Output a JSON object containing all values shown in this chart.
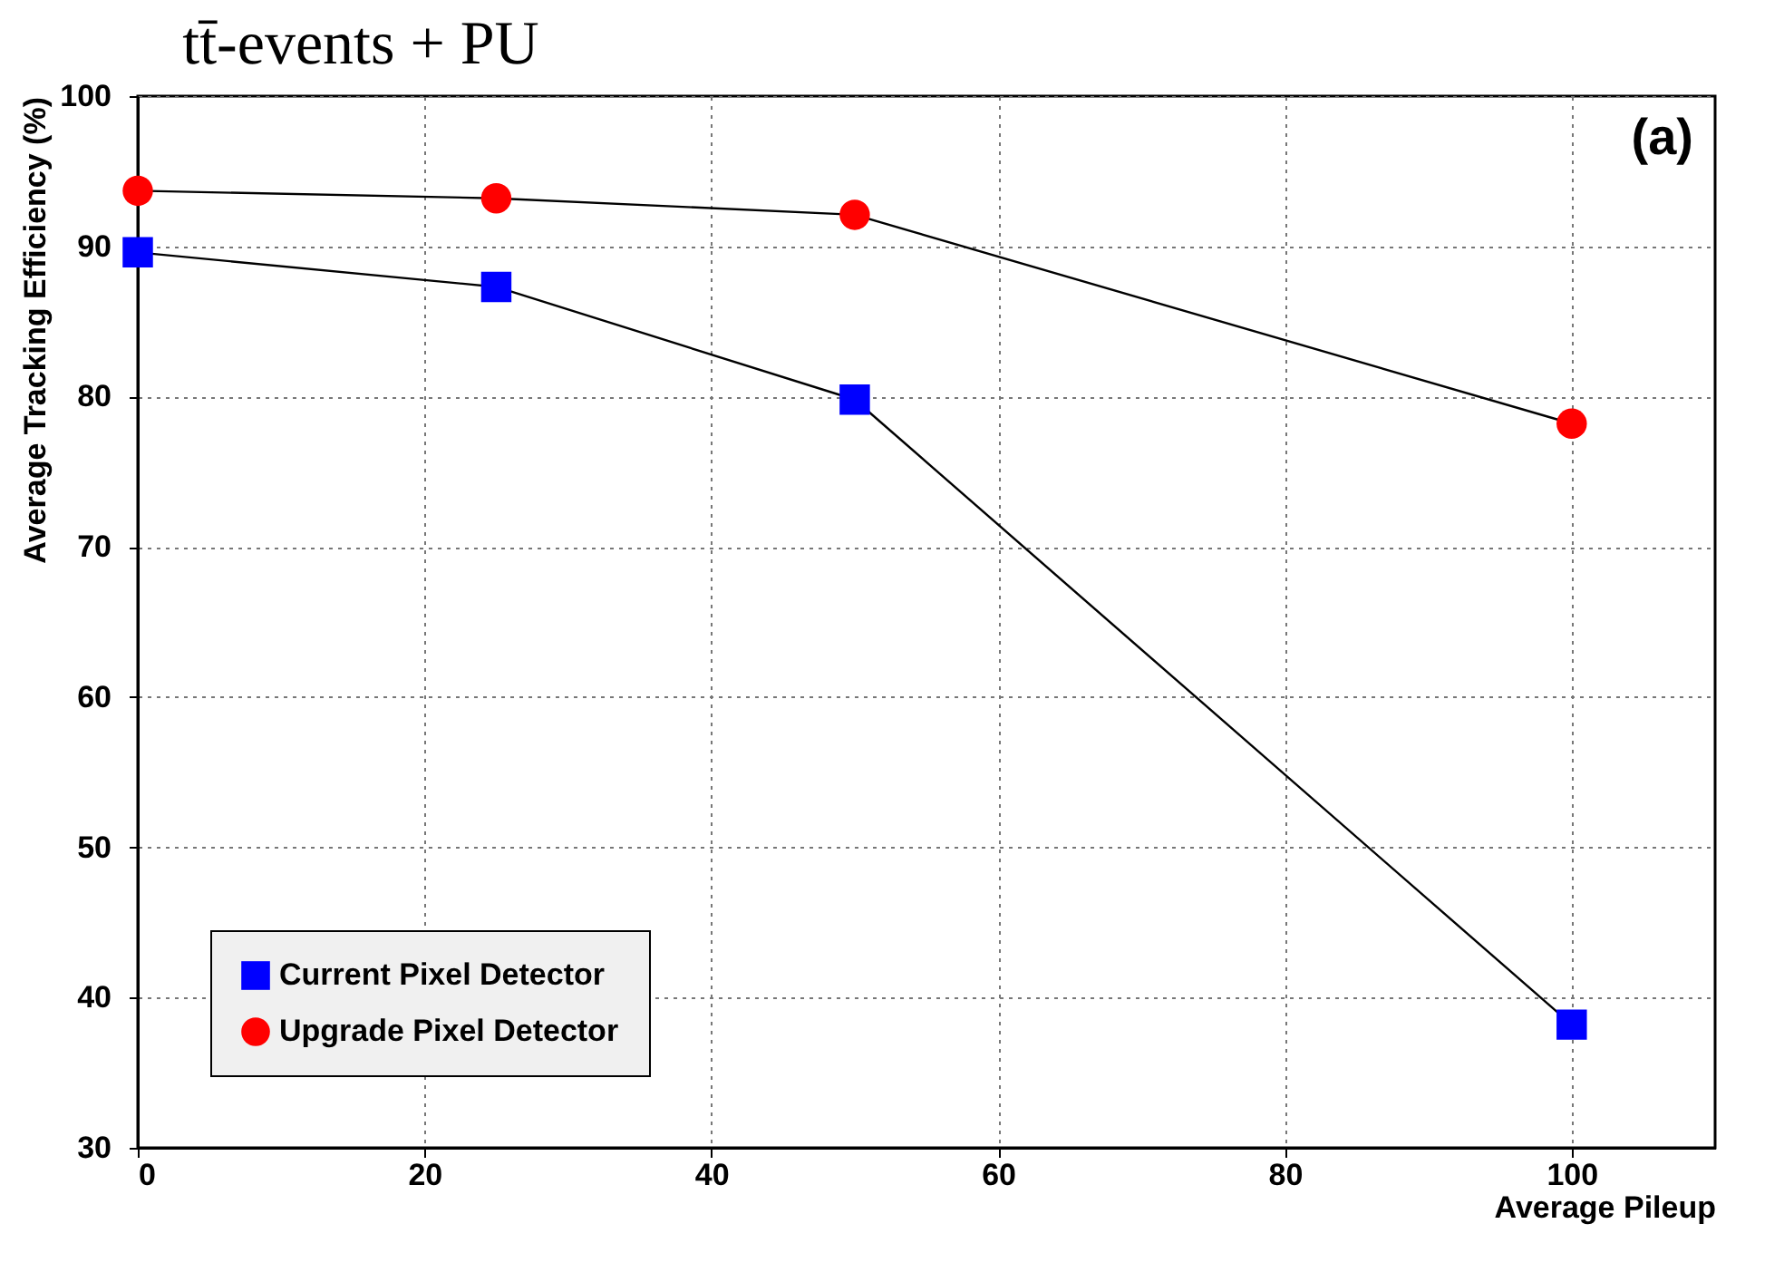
{
  "chart_data": {
    "type": "line",
    "title": "tt̄-events +  PU",
    "xlabel": "Average Pileup",
    "ylabel": "Average Tracking Efficiency (%)",
    "annotations": [
      "(a)"
    ],
    "x": [
      0,
      25,
      50,
      100
    ],
    "series": [
      {
        "name": "Current Pixel Detector",
        "color": "#0000ff",
        "marker": "square",
        "values": [
          89.6,
          87.3,
          79.8,
          38.2
        ]
      },
      {
        "name": "Upgrade Pixel Detector",
        "color": "#ff0000",
        "marker": "circle",
        "values": [
          93.7,
          93.2,
          92.1,
          78.2
        ]
      }
    ],
    "xlim": [
      0,
      110
    ],
    "xticks": [
      0,
      20,
      40,
      60,
      80,
      100
    ],
    "ylim": [
      30,
      100
    ],
    "yticks": [
      30,
      40,
      50,
      60,
      70,
      80,
      90,
      100
    ],
    "grid": true,
    "legend": "bottom left",
    "line_style": "solid"
  }
}
